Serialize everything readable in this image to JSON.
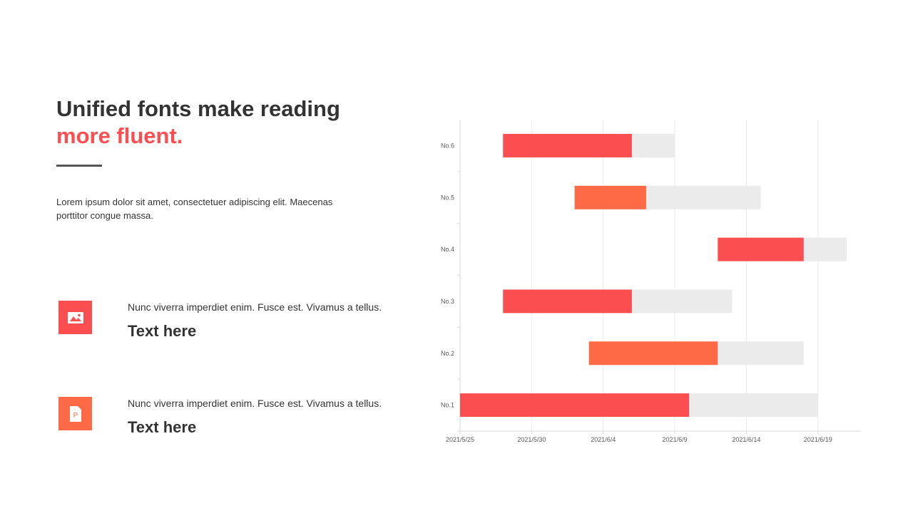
{
  "slide": {
    "title_line1": "Unified fonts make reading",
    "title_line2": "more fluent.",
    "lead": "Lorem ipsum dolor sit amet, consectetuer adipiscing elit. Maecenas porttitor congue massa.",
    "features": [
      {
        "icon": "image-icon",
        "color": "#FA4E50",
        "text": "Nunc viverra imperdiet enim. Fusce est. Vivamus a tellus.",
        "heading": "Text here"
      },
      {
        "icon": "presentation-file-icon",
        "color": "#FE6A45",
        "text": "Nunc viverra imperdiet enim. Fusce est. Vivamus a tellus.",
        "heading": "Text here"
      }
    ]
  },
  "colors": {
    "red": "#FA4E50",
    "orange": "#FE6A45",
    "track": "#EBEBEC",
    "text": "#333333"
  },
  "chart_data": {
    "type": "bar",
    "orientation": "horizontal",
    "stacked": true,
    "categories": [
      "No.1",
      "No.2",
      "No.3",
      "No.4",
      "No.5",
      "No.6"
    ],
    "x_tick_labels": [
      "2021/5/25",
      "2021/5/30",
      "2021/6/4",
      "2021/6/9",
      "2021/6/14",
      "2021/6/19"
    ],
    "xlim": [
      "2021/5/25",
      "2021/6/22"
    ],
    "tasks": [
      {
        "category": "No.1",
        "start": "2021/5/25",
        "progress_end": "2021/6/10",
        "end": "2021/6/19",
        "color": "#FA4E50"
      },
      {
        "category": "No.2",
        "start": "2021/6/3",
        "progress_end": "2021/6/12",
        "end": "2021/6/18",
        "color": "#FE6A45"
      },
      {
        "category": "No.3",
        "start": "2021/5/28",
        "progress_end": "2021/6/6",
        "end": "2021/6/13",
        "color": "#FA4E50"
      },
      {
        "category": "No.4",
        "start": "2021/6/12",
        "progress_end": "2021/6/18",
        "end": "2021/6/21",
        "color": "#FA4E50"
      },
      {
        "category": "No.5",
        "start": "2021/6/2",
        "progress_end": "2021/6/7",
        "end": "2021/6/15",
        "color": "#FE6A45"
      },
      {
        "category": "No.6",
        "start": "2021/5/28",
        "progress_end": "2021/6/6",
        "end": "2021/6/9",
        "color": "#FA4E50"
      }
    ],
    "grid": "vertical",
    "legend": "none"
  }
}
